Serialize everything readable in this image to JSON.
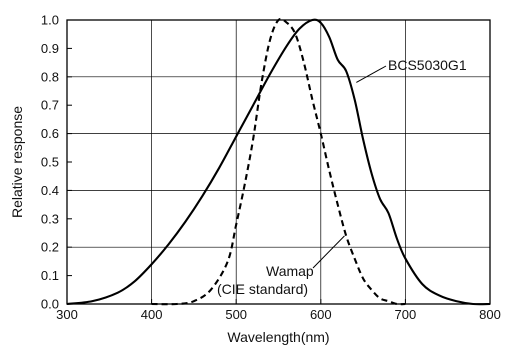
{
  "chart_data": {
    "type": "line",
    "title": "",
    "xlabel": "Wavelength(nm)",
    "ylabel": "Relative response",
    "xlim": [
      300,
      800
    ],
    "ylim": [
      0.0,
      1.0
    ],
    "grid": true,
    "x_ticks": [
      "300",
      "400",
      "500",
      "600",
      "700",
      "800"
    ],
    "y_ticks": [
      "0.0",
      "0.1",
      "0.2",
      "0.3",
      "0.4",
      "0.5",
      "0.6",
      "0.7",
      "0.8",
      "0.9",
      "1.0"
    ],
    "series": [
      {
        "name": "BCS5030G1",
        "style": "solid",
        "color": "#000000",
        "x": [
          300,
          330,
          360,
          380,
          400,
          420,
          440,
          460,
          480,
          500,
          520,
          540,
          560,
          575,
          590,
          600,
          610,
          620,
          630,
          640,
          650,
          660,
          670,
          680,
          690,
          700,
          720,
          740,
          760,
          780,
          800
        ],
        "y": [
          0.0,
          0.01,
          0.04,
          0.08,
          0.14,
          0.21,
          0.29,
          0.38,
          0.48,
          0.59,
          0.7,
          0.81,
          0.91,
          0.97,
          1.0,
          0.99,
          0.94,
          0.86,
          0.82,
          0.72,
          0.58,
          0.46,
          0.37,
          0.32,
          0.23,
          0.16,
          0.07,
          0.03,
          0.01,
          0.0,
          0.0
        ]
      },
      {
        "name": "Wamap (CIE standard)",
        "style": "dashed",
        "color": "#000000",
        "x": [
          400,
          430,
          450,
          470,
          490,
          500,
          510,
          520,
          530,
          540,
          550,
          560,
          570,
          580,
          590,
          600,
          610,
          620,
          630,
          640,
          650,
          660,
          670,
          680,
          690,
          700
        ],
        "y": [
          0.0,
          0.0,
          0.01,
          0.05,
          0.15,
          0.28,
          0.42,
          0.58,
          0.78,
          0.93,
          1.0,
          0.99,
          0.95,
          0.85,
          0.72,
          0.6,
          0.47,
          0.35,
          0.24,
          0.16,
          0.09,
          0.05,
          0.02,
          0.01,
          0.0,
          0.0
        ]
      }
    ],
    "annotations": [
      {
        "text": "BCS5030G1",
        "series": 0
      },
      {
        "text": "Wamap",
        "series": 1
      },
      {
        "text": "(CIE standard)",
        "series": 1
      }
    ]
  }
}
